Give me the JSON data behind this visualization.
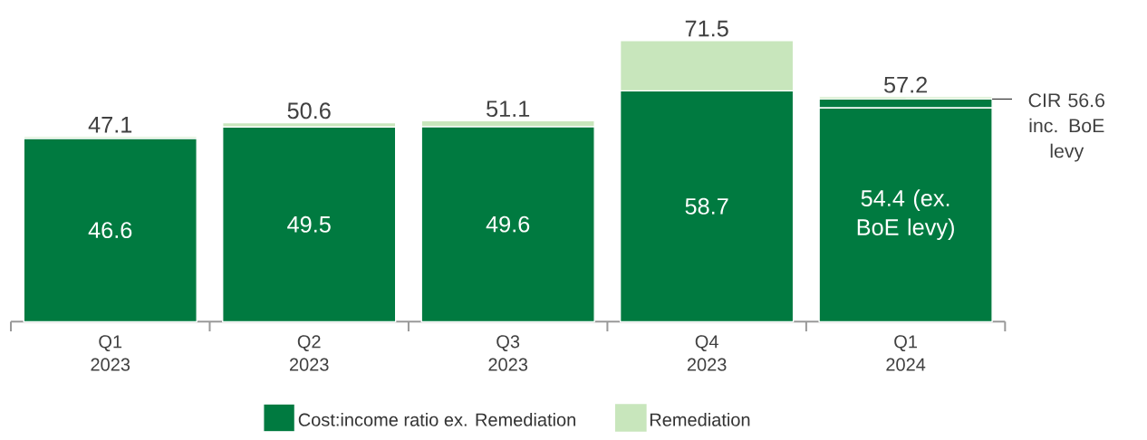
{
  "chart_data": {
    "type": "bar",
    "stacked": true,
    "legend": "bottom",
    "categories": [
      "Q1 2023",
      "Q2 2023",
      "Q3 2023",
      "Q4 2023",
      "Q1 2024"
    ],
    "series": [
      {
        "name": "Cost:income ratio ex. Remediation",
        "color": "#007a40",
        "values": [
          46.6,
          49.5,
          49.6,
          58.7,
          54.4
        ],
        "value_labels": [
          "46.6",
          "49.5",
          "49.6",
          "58.7",
          "54.4 (ex. BoE levy)"
        ]
      },
      {
        "color": "#007a40",
        "values": [
          null,
          null,
          null,
          null,
          2.2
        ]
      },
      {
        "name": "Remediation",
        "color": "#c8e6bc",
        "values": [
          0.5,
          1.1,
          1.5,
          12.8,
          0.6
        ]
      }
    ],
    "totals": [
      "47.1",
      "50.6",
      "51.1",
      "71.5",
      "57.2"
    ],
    "annotations": [
      "CIR 56.6 inc. BoE levy"
    ]
  }
}
